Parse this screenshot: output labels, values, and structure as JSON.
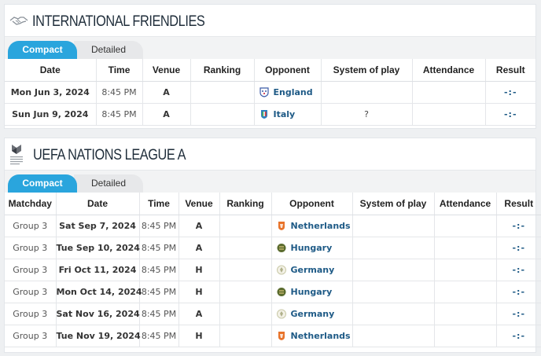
{
  "sections": [
    {
      "title": "INTERNATIONAL FRIENDLIES",
      "tabs": [
        "Compact",
        "Detailed"
      ],
      "headers": [
        "Date",
        "Time",
        "Venue",
        "Ranking",
        "Opponent",
        "System of play",
        "Attendance",
        "Result"
      ],
      "rows": [
        {
          "date": "Mon Jun 3, 2024",
          "time": "8:45 PM",
          "venue": "A",
          "ranking": "",
          "opponent": "England",
          "crest": "england-crest-icon",
          "system": "",
          "attendance": "",
          "result": "-:-"
        },
        {
          "date": "Sun Jun 9, 2024",
          "time": "8:45 PM",
          "venue": "A",
          "ranking": "",
          "opponent": "Italy",
          "crest": "italy-crest-icon",
          "system": "?",
          "attendance": "",
          "result": "-:-"
        }
      ]
    },
    {
      "title": "UEFA NATIONS LEAGUE A",
      "tabs": [
        "Compact",
        "Detailed"
      ],
      "headers": [
        "Matchday",
        "Date",
        "Time",
        "Venue",
        "Ranking",
        "Opponent",
        "System of play",
        "Attendance",
        "Result"
      ],
      "rows": [
        {
          "matchday": "Group 3",
          "date": "Sat Sep 7, 2024",
          "time": "8:45 PM",
          "venue": "A",
          "ranking": "",
          "opponent": "Netherlands",
          "crest": "netherlands-crest-icon",
          "system": "",
          "attendance": "",
          "result": "-:-"
        },
        {
          "matchday": "Group 3",
          "date": "Tue Sep 10, 2024",
          "time": "8:45 PM",
          "venue": "A",
          "ranking": "",
          "opponent": "Hungary",
          "crest": "hungary-crest-icon",
          "system": "",
          "attendance": "",
          "result": "-:-"
        },
        {
          "matchday": "Group 3",
          "date": "Fri Oct 11, 2024",
          "time": "8:45 PM",
          "venue": "H",
          "ranking": "",
          "opponent": "Germany",
          "crest": "germany-crest-icon",
          "system": "",
          "attendance": "",
          "result": "-:-"
        },
        {
          "matchday": "Group 3",
          "date": "Mon Oct 14, 2024",
          "time": "8:45 PM",
          "venue": "H",
          "ranking": "",
          "opponent": "Hungary",
          "crest": "hungary-crest-icon",
          "system": "",
          "attendance": "",
          "result": "-:-"
        },
        {
          "matchday": "Group 3",
          "date": "Sat Nov 16, 2024",
          "time": "8:45 PM",
          "venue": "A",
          "ranking": "",
          "opponent": "Germany",
          "crest": "germany-crest-icon",
          "system": "",
          "attendance": "",
          "result": "-:-"
        },
        {
          "matchday": "Group 3",
          "date": "Tue Nov 19, 2024",
          "time": "8:45 PM",
          "venue": "H",
          "ranking": "",
          "opponent": "Netherlands",
          "crest": "netherlands-crest-icon",
          "system": "",
          "attendance": "",
          "result": "-:-"
        }
      ]
    }
  ],
  "colors": {
    "accent": "#2aa5dd",
    "link": "#1e5a86",
    "netherlands": "#e8732a",
    "hungary": "#5a6b2e",
    "germany": "#c9c9a8",
    "england": "#3b5aa8",
    "italy": "#2d7fc1"
  }
}
